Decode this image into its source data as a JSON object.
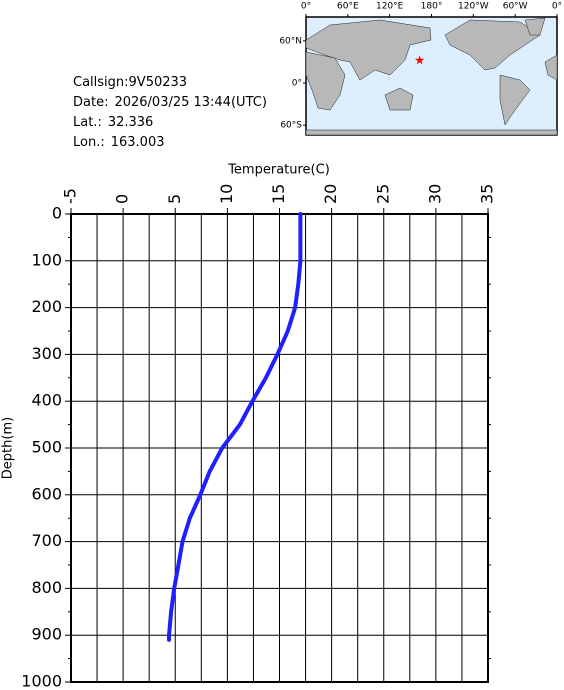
{
  "chart_data": {
    "type": "line",
    "x_label": "Temperature(C)",
    "y_label": "Depth(m)",
    "color": "#1f1fff",
    "x": [
      17.0,
      17.0,
      17.0,
      16.8,
      16.5,
      15.8,
      14.8,
      13.7,
      12.4,
      11.2,
      9.5,
      8.3,
      7.4,
      6.4,
      5.7,
      5.3,
      4.9,
      4.6,
      4.4,
      4.4
    ],
    "y": [
      0,
      50,
      100,
      150,
      200,
      250,
      300,
      350,
      400,
      450,
      500,
      550,
      600,
      650,
      700,
      750,
      800,
      850,
      900,
      910
    ],
    "xlim": [
      -5,
      35
    ],
    "ylim": [
      0,
      1000
    ],
    "xticks": [
      -5,
      0,
      5,
      10,
      15,
      20,
      25,
      30,
      35
    ],
    "yticks": [
      0,
      100,
      200,
      300,
      400,
      500,
      600,
      700,
      800,
      900,
      1000
    ],
    "xminorticks": [
      -2.5,
      2.5,
      7.5,
      12.5,
      17.5,
      22.5,
      27.5,
      32.5
    ],
    "yminorticks": [
      50,
      150,
      250,
      350,
      450,
      550,
      650,
      750,
      850,
      950
    ],
    "grid": true
  },
  "info": {
    "lines": [
      {
        "label": "Callsign:",
        "value": "9V50233"
      },
      {
        "label": "Date:",
        "value": "2026/03/25 13:44(UTC)"
      },
      {
        "label": "Lat.:",
        "value": 32.336
      },
      {
        "label": "Lon.:",
        "value": 163.003
      }
    ]
  },
  "map": {
    "lonlim": [
      0,
      360
    ],
    "latlim": [
      -74,
      94
    ],
    "lon_ticks": [
      {
        "value": 0,
        "label": "0°"
      },
      {
        "value": 60,
        "label": "60°E"
      },
      {
        "value": 120,
        "label": "120°E"
      },
      {
        "value": 180,
        "label": "180°"
      },
      {
        "value": 240,
        "label": "120°W"
      },
      {
        "value": 300,
        "label": "60°W"
      },
      {
        "value": 360,
        "label": "0°"
      }
    ],
    "lat_ticks": [
      {
        "value": 60,
        "label": "60°N"
      },
      {
        "value": 0,
        "label": "0°"
      },
      {
        "value": -60,
        "label": "60°S"
      }
    ]
  }
}
